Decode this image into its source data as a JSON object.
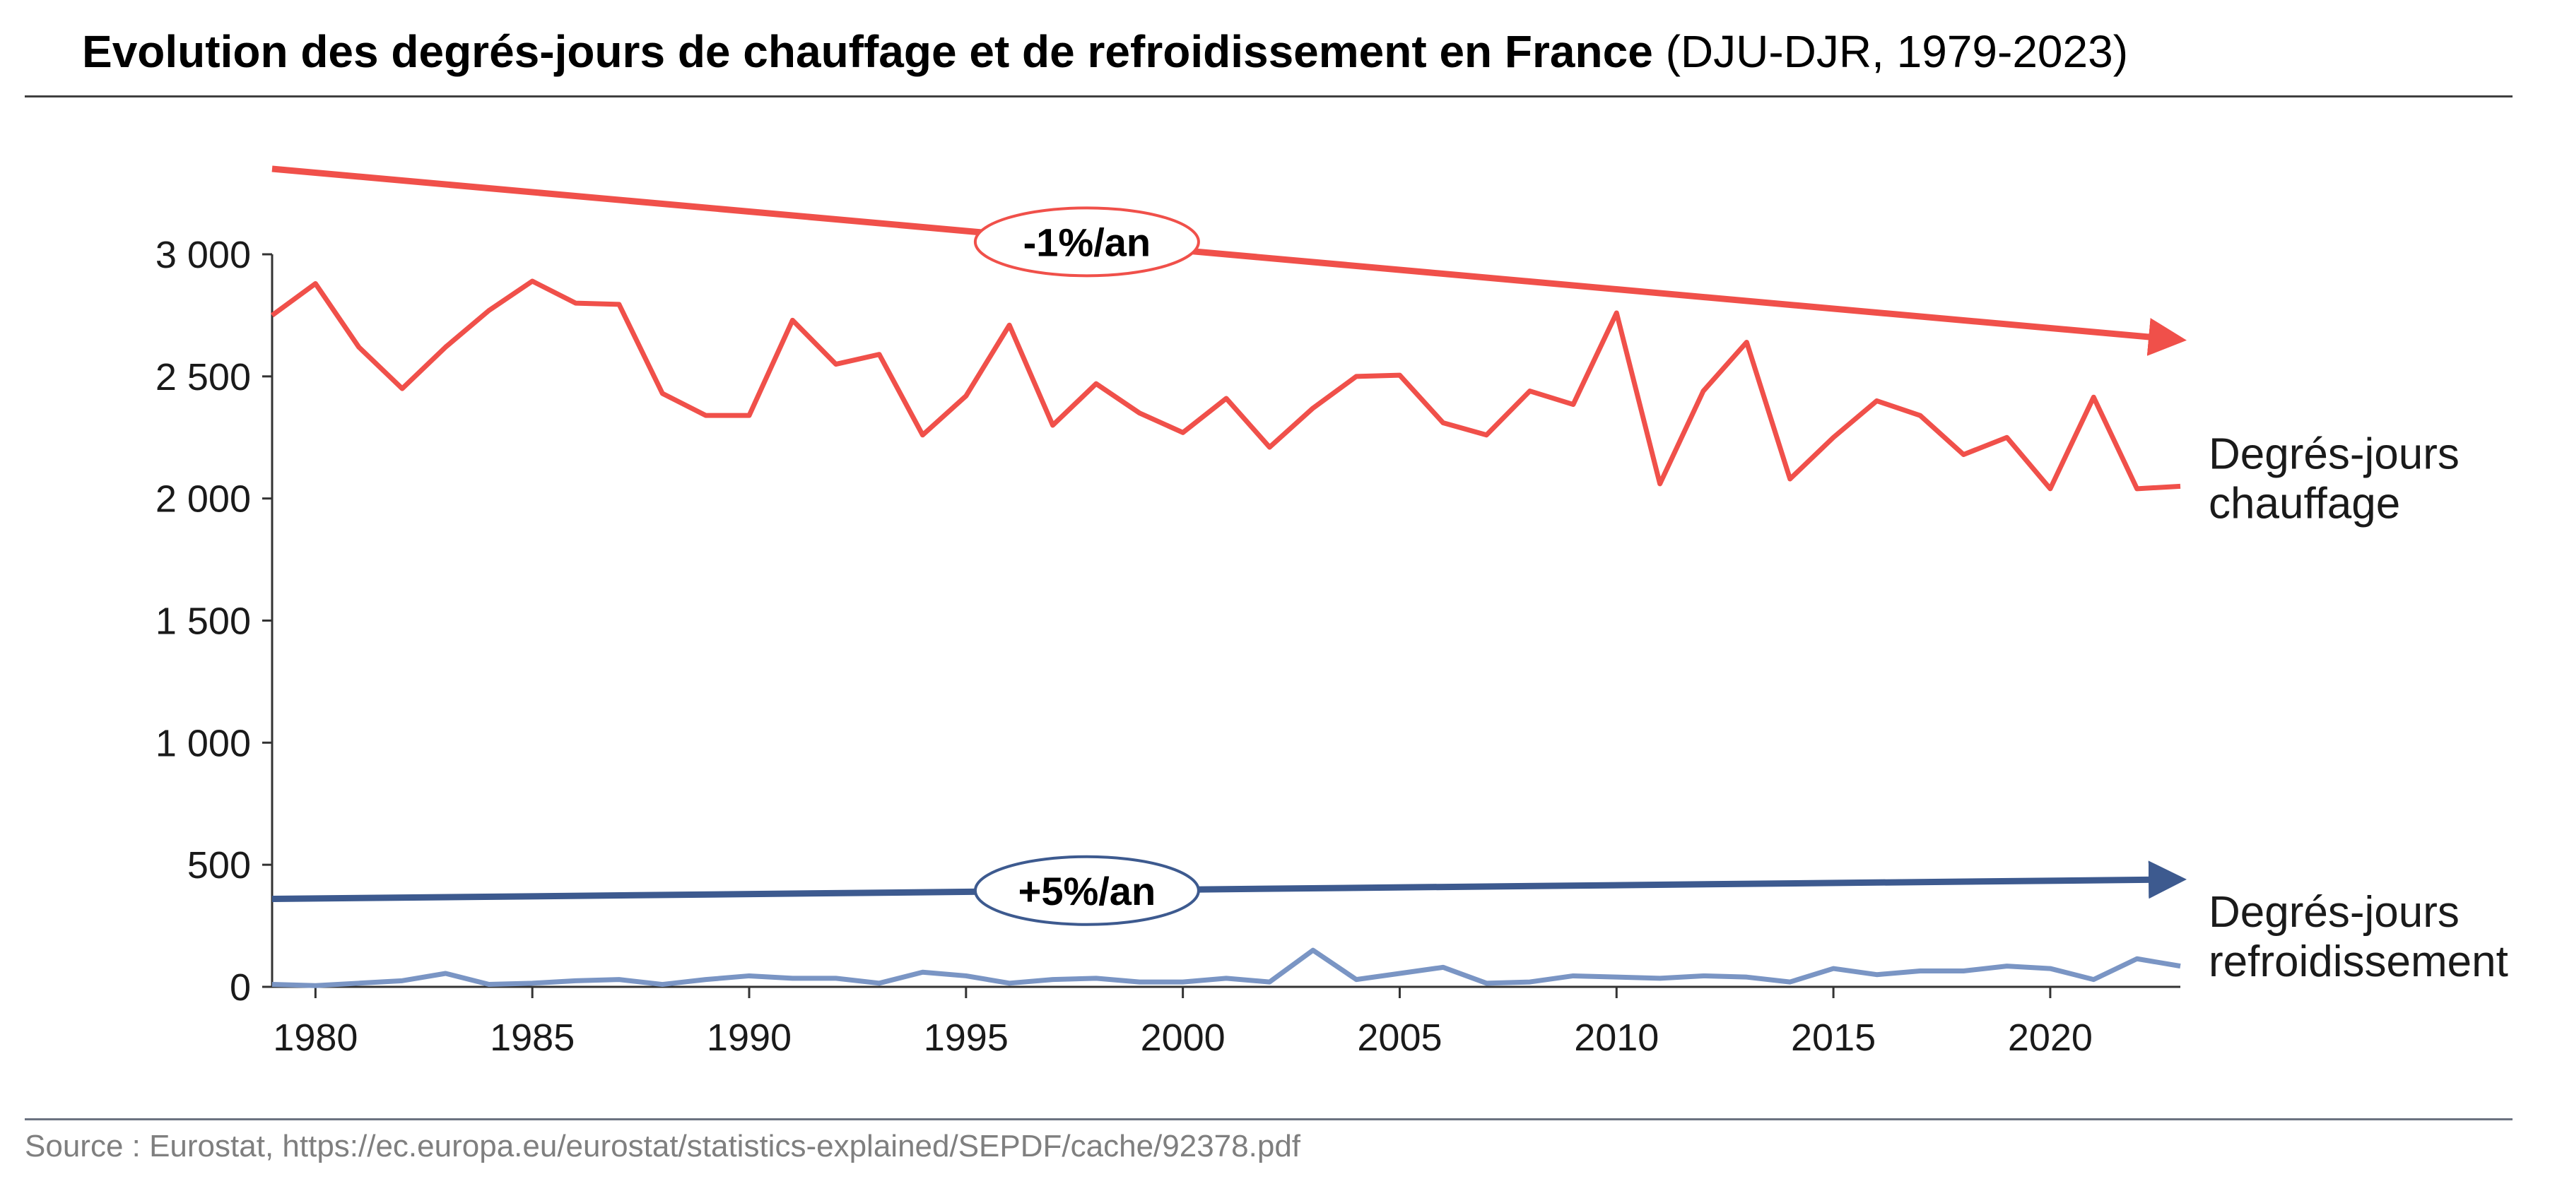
{
  "title": {
    "main": "Evolution des degrés-jours de chauffage et de refroidissement en France",
    "sub": "(DJU-DJR, 1979-2023)"
  },
  "source": "Source : Eurostat, https://ec.europa.eu/eurostat/statistics-explained/SEPDF/cache/92378.pdf",
  "colors": {
    "heating": "#f0504a",
    "cooling": "#7a95c4",
    "cooling_trend": "#3d5a8f",
    "axis": "#333333"
  },
  "chart_data": {
    "type": "line",
    "title": "Evolution des degrés-jours de chauffage et de refroidissement en France (DJU-DJR, 1979-2023)",
    "xlabel": "",
    "ylabel": "",
    "xlim": [
      1979,
      2023
    ],
    "ylim": [
      0,
      3000
    ],
    "y_ticks": [
      0,
      500,
      1000,
      1500,
      2000,
      2500,
      3000
    ],
    "y_tick_labels": [
      "0",
      "500",
      "1 000",
      "1 500",
      "2 000",
      "2 500",
      "3 000"
    ],
    "x_ticks": [
      1980,
      1985,
      1990,
      1995,
      2000,
      2005,
      2010,
      2015,
      2020
    ],
    "x_tick_labels": [
      "1980",
      "1985",
      "1990",
      "1995",
      "2000",
      "2005",
      "2010",
      "2015",
      "2020"
    ],
    "grid": false,
    "x": [
      1979,
      1980,
      1981,
      1982,
      1983,
      1984,
      1985,
      1986,
      1987,
      1988,
      1989,
      1990,
      1991,
      1992,
      1993,
      1994,
      1995,
      1996,
      1997,
      1998,
      1999,
      2000,
      2001,
      2002,
      2003,
      2004,
      2005,
      2006,
      2007,
      2008,
      2009,
      2010,
      2011,
      2012,
      2013,
      2014,
      2015,
      2016,
      2017,
      2018,
      2019,
      2020,
      2021,
      2022,
      2023
    ],
    "series": [
      {
        "name": "Degrés-jours chauffage",
        "label_lines": [
          "Degrés-jours",
          "chauffage"
        ],
        "values": [
          2750,
          2880,
          2620,
          2450,
          2620,
          2770,
          2890,
          2800,
          2795,
          2430,
          2340,
          2340,
          2730,
          2550,
          2590,
          2260,
          2420,
          2710,
          2300,
          2470,
          2350,
          2270,
          2410,
          2210,
          2370,
          2500,
          2505,
          2310,
          2260,
          2440,
          2385,
          2760,
          2060,
          2440,
          2640,
          2080,
          2250,
          2400,
          2340,
          2180,
          2250,
          2040,
          2415,
          2040,
          2050
        ],
        "trend": {
          "label": "-1%/an",
          "start": 3350,
          "end": 2650
        }
      },
      {
        "name": "Degrés-jours refroidissement",
        "label_lines": [
          "Degrés-jours",
          "refroidissement"
        ],
        "values": [
          10,
          5,
          15,
          25,
          55,
          10,
          15,
          25,
          30,
          10,
          30,
          45,
          35,
          35,
          15,
          60,
          45,
          15,
          30,
          35,
          20,
          20,
          35,
          20,
          150,
          30,
          55,
          80,
          15,
          20,
          45,
          40,
          35,
          45,
          40,
          20,
          75,
          50,
          65,
          65,
          85,
          75,
          30,
          115,
          85
        ],
        "trend": {
          "label": "+5%/an",
          "start": 360,
          "end": 440
        }
      }
    ]
  }
}
